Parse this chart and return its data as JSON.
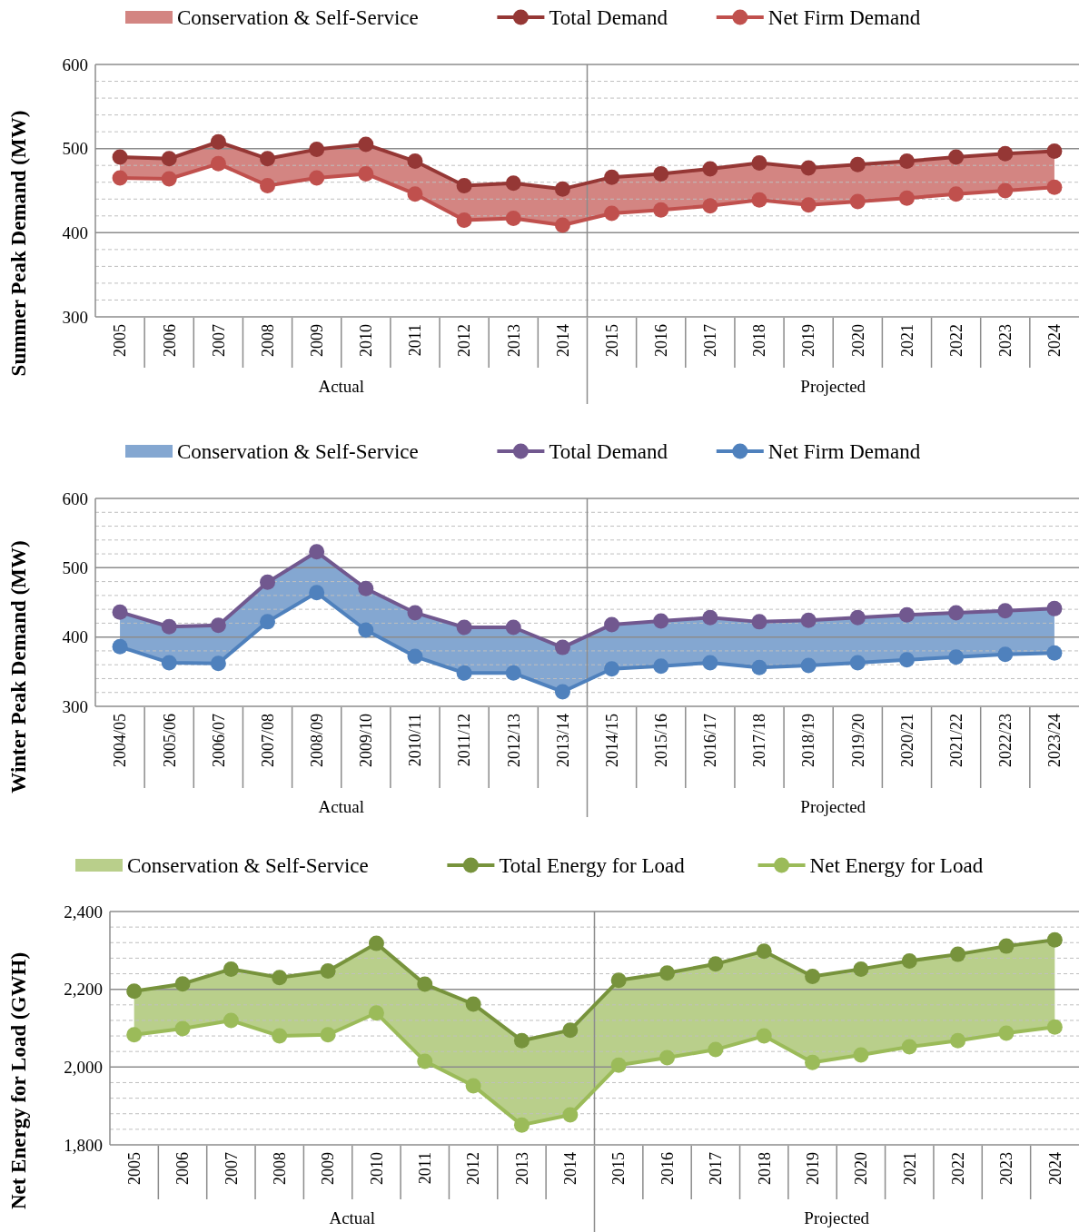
{
  "chart_data": [
    {
      "type": "line",
      "ylabel": "Summer Peak Demand (MW)",
      "categories": [
        "2005",
        "2006",
        "2007",
        "2008",
        "2009",
        "2010",
        "2011",
        "2012",
        "2013",
        "2014",
        "2015",
        "2016",
        "2017",
        "2018",
        "2019",
        "2020",
        "2021",
        "2022",
        "2023",
        "2024"
      ],
      "series": [
        {
          "name": "Total Demand",
          "type": "line",
          "color": "#953735",
          "values": [
            490,
            488,
            508,
            488,
            499,
            505,
            485,
            456,
            459,
            452,
            466,
            470,
            476,
            483,
            477,
            481,
            485,
            490,
            494,
            497
          ]
        },
        {
          "name": "Net Firm Demand",
          "type": "line",
          "color": "#c0504d",
          "values": [
            465,
            464,
            482,
            456,
            465,
            470,
            446,
            415,
            417,
            409,
            423,
            427,
            432,
            439,
            433,
            437,
            441,
            446,
            450,
            454
          ],
          "lower": [
            465,
            464,
            482,
            456,
            465,
            470,
            446,
            415,
            417,
            409,
            423,
            427,
            432,
            439,
            433,
            437,
            441,
            446,
            450,
            454
          ],
          "upper": [
            490,
            488,
            508,
            488,
            499,
            505,
            485,
            456,
            459,
            452,
            466,
            470,
            476,
            483,
            477,
            481,
            485,
            490,
            494,
            497
          ]
        }
      ],
      "ylim": [
        300,
        600
      ],
      "yticks": [
        300,
        {
          "value": 320,
          "label": null
        },
        {
          "value": 340,
          "label": null
        },
        {
          "value": 360,
          "label": null
        },
        {
          "value": 380,
          "label": null
        },
        400,
        {
          "value": 420,
          "label": null
        },
        {
          "value": 440,
          "label": null
        },
        {
          "value": 460,
          "label": null
        },
        {
          "value": 480,
          "label": null
        },
        500,
        {
          "value": 520,
          "label": null
        },
        {
          "value": 540,
          "label": null
        },
        {
          "value": 560,
          "label": null
        },
        {
          "value": 580,
          "label": null
        },
        600
      ],
      "annotations": [
        "Conservation & Self-Service",
        "Actual",
        "Projected"
      ],
      "grid": true,
      "legend": "top",
      "marker": "circle"
    },
    {
      "type": "line",
      "ylabel": "Winter Peak Demand (MW)",
      "categories": [
        "2004/05",
        "2005/06",
        "2006/07",
        "2007/08",
        "2008/09",
        "2009/10",
        "2010/11",
        "2011/12",
        "2012/13",
        "2013/14",
        "2014/15",
        "2015/16",
        "2016/17",
        "2017/18",
        "2018/19",
        "2019/20",
        "2020/21",
        "2021/22",
        "2022/23",
        "2023/24"
      ],
      "series": [
        {
          "name": "Total Demand",
          "type": "line",
          "color": "#71588f",
          "values": [
            436,
            415,
            417,
            479,
            523,
            470,
            435,
            414,
            414,
            385,
            418,
            423,
            428,
            422,
            424,
            428,
            432,
            435,
            438,
            441
          ]
        },
        {
          "name": "Net Firm Demand",
          "type": "line",
          "color": "#4f81bd",
          "values": [
            386,
            363,
            362,
            422,
            464,
            410,
            372,
            348,
            348,
            321,
            354,
            358,
            363,
            356,
            359,
            363,
            367,
            371,
            375,
            377
          ],
          "lower": [
            386,
            363,
            362,
            422,
            464,
            410,
            372,
            348,
            348,
            321,
            354,
            358,
            363,
            356,
            359,
            363,
            367,
            371,
            375,
            377
          ],
          "upper": [
            436,
            415,
            417,
            479,
            523,
            470,
            435,
            414,
            414,
            385,
            418,
            423,
            428,
            422,
            424,
            428,
            432,
            435,
            438,
            441
          ]
        }
      ],
      "ylim": [
        300,
        600
      ],
      "yticks": [
        300,
        {
          "value": 320,
          "label": null
        },
        {
          "value": 340,
          "label": null
        },
        {
          "value": 360,
          "label": null
        },
        {
          "value": 380,
          "label": null
        },
        400,
        {
          "value": 420,
          "label": null
        },
        {
          "value": 440,
          "label": null
        },
        {
          "value": 460,
          "label": null
        },
        {
          "value": 480,
          "label": null
        },
        500,
        {
          "value": 520,
          "label": null
        },
        {
          "value": 540,
          "label": null
        },
        {
          "value": 560,
          "label": null
        },
        {
          "value": 580,
          "label": null
        },
        600
      ],
      "annotations": [
        "Conservation & Self-Service",
        "Actual",
        "Projected"
      ],
      "grid": true,
      "legend": "top",
      "marker": "circle"
    },
    {
      "type": "line",
      "ylabel": "Net Energy for Load (GWH)",
      "categories": [
        "2005",
        "2006",
        "2007",
        "2008",
        "2009",
        "2010",
        "2011",
        "2012",
        "2013",
        "2014",
        "2015",
        "2016",
        "2017",
        "2018",
        "2019",
        "2020",
        "2021",
        "2022",
        "2023",
        "2024"
      ],
      "series": [
        {
          "name": "Total Energy for Load",
          "type": "line",
          "color": "#77933c",
          "values": [
            2195,
            2214,
            2252,
            2230,
            2247,
            2318,
            2213,
            2162,
            2068,
            2095,
            2223,
            2242,
            2265,
            2298,
            2233,
            2252,
            2273,
            2290,
            2311,
            2327
          ]
        },
        {
          "name": "Net Energy for Load",
          "type": "line",
          "color": "#9bbb59",
          "values": [
            2083,
            2099,
            2120,
            2080,
            2083,
            2139,
            2015,
            1952,
            1851,
            1877,
            2005,
            2024,
            2045,
            2080,
            2012,
            2031,
            2052,
            2068,
            2087,
            2103
          ],
          "lower": [
            2083,
            2099,
            2120,
            2080,
            2083,
            2139,
            2015,
            1952,
            1851,
            1877,
            2005,
            2024,
            2045,
            2080,
            2012,
            2031,
            2052,
            2068,
            2087,
            2103
          ],
          "upper": [
            2195,
            2214,
            2252,
            2230,
            2247,
            2318,
            2213,
            2162,
            2068,
            2095,
            2223,
            2242,
            2265,
            2298,
            2233,
            2252,
            2273,
            2290,
            2311,
            2327
          ]
        }
      ],
      "ylim": [
        1800,
        2400
      ],
      "yticks": [
        {
          "value": 1800,
          "label": "1,800"
        },
        {
          "value": 1840,
          "label": null
        },
        {
          "value": 1880,
          "label": null
        },
        {
          "value": 1920,
          "label": null
        },
        {
          "value": 1960,
          "label": null
        },
        {
          "value": 2000,
          "label": "2,000"
        },
        {
          "value": 2040,
          "label": null
        },
        {
          "value": 2080,
          "label": null
        },
        {
          "value": 2120,
          "label": null
        },
        {
          "value": 2160,
          "label": null
        },
        {
          "value": 2200,
          "label": "2,200"
        },
        {
          "value": 2240,
          "label": null
        },
        {
          "value": 2280,
          "label": null
        },
        {
          "value": 2320,
          "label": null
        },
        {
          "value": 2360,
          "label": null
        },
        {
          "value": 2400,
          "label": "2,400"
        }
      ],
      "annotations": [
        "Conservation & Self-Service",
        "Actual",
        "Projected"
      ],
      "grid": true,
      "legend": "top",
      "marker": "circle"
    }
  ]
}
